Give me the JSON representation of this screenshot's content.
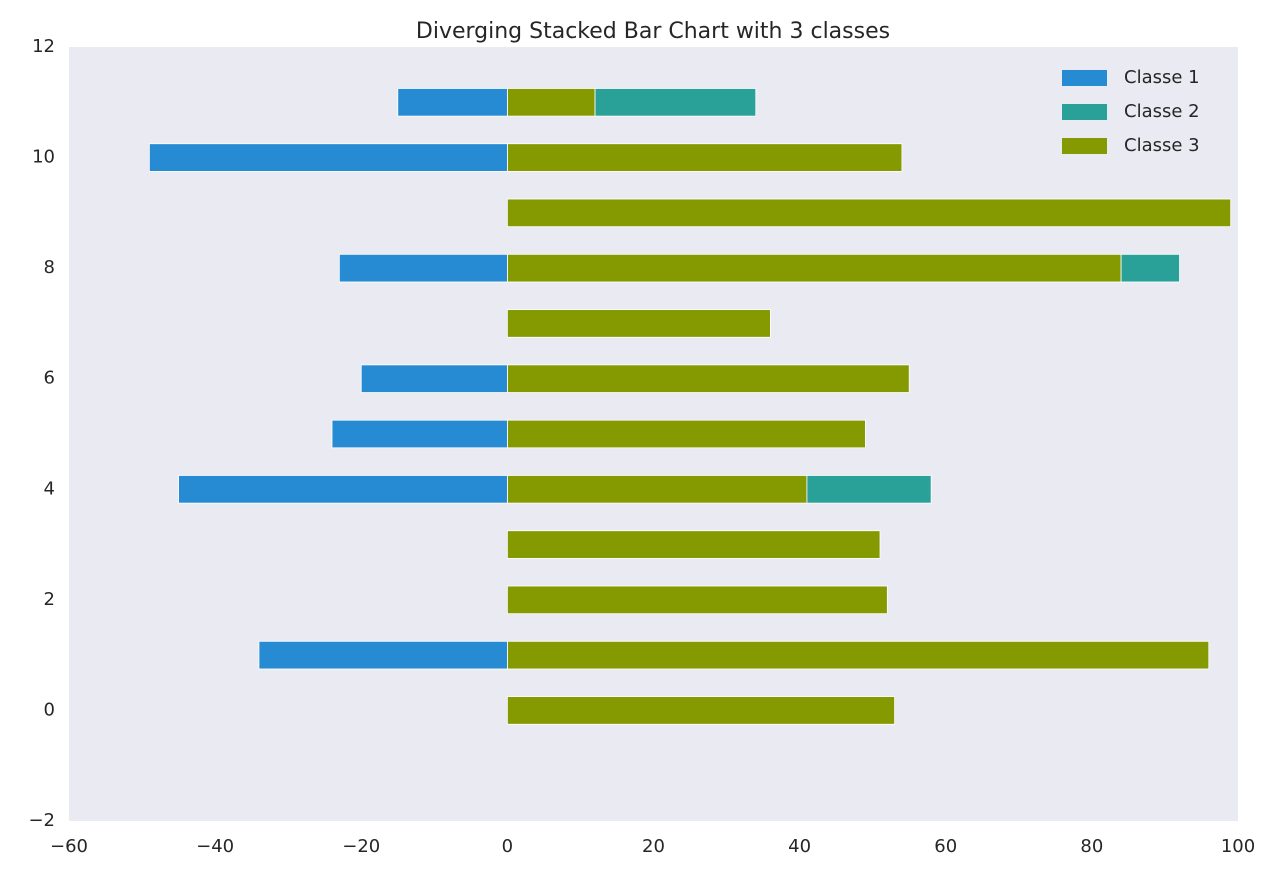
{
  "chart_data": {
    "type": "bar",
    "orientation": "horizontal",
    "stacked": true,
    "title": "Diverging Stacked Bar Chart with 3 classes",
    "x": [
      0,
      1,
      2,
      3,
      4,
      5,
      6,
      7,
      8,
      9,
      10,
      11
    ],
    "series": [
      {
        "name": "Classe 1",
        "color": "#268bd2",
        "values": [
          0,
          -34,
          0,
          0,
          -45,
          -24,
          -20,
          0,
          -23,
          0,
          -49,
          -15
        ]
      },
      {
        "name": "Classe 2",
        "color": "#2aa198",
        "values": [
          0,
          0,
          0,
          0,
          17,
          0,
          0,
          0,
          8,
          0,
          0,
          22
        ]
      },
      {
        "name": "Classe 3",
        "color": "#859900",
        "values": [
          53,
          96,
          52,
          51,
          41,
          49,
          55,
          36,
          84,
          99,
          54,
          12
        ]
      }
    ],
    "xlim": [
      -60,
      100
    ],
    "xticks": [
      {
        "value": -60,
        "label": "−60"
      },
      {
        "value": -40,
        "label": "−40"
      },
      {
        "value": -20,
        "label": "−20"
      },
      0,
      20,
      40,
      60,
      80,
      100
    ],
    "ylim": [
      -2,
      12
    ],
    "yticks": [
      {
        "value": -2,
        "label": "−2"
      },
      0,
      2,
      4,
      6,
      8,
      10,
      12
    ],
    "grid": false,
    "legend": "upper right",
    "background": "#eaeaf2"
  }
}
